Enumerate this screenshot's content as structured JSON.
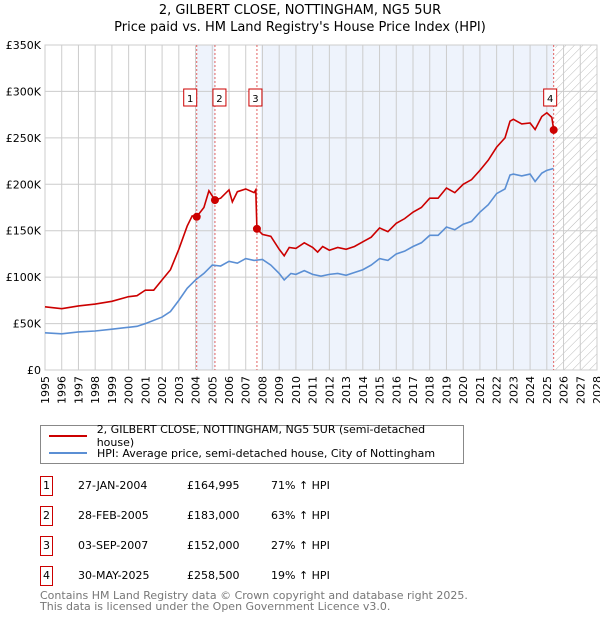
{
  "title": "2, GILBERT CLOSE, NOTTINGHAM, NG5 5UR",
  "subtitle": "Price paid vs. HM Land Registry's House Price Index (HPI)",
  "chart_data": {
    "type": "line",
    "xlim": [
      1995,
      2028
    ],
    "ylim": [
      0,
      350000
    ],
    "yticks": [
      {
        "v": 0,
        "label": "£0"
      },
      {
        "v": 50000,
        "label": "£50K"
      },
      {
        "v": 100000,
        "label": "£100K"
      },
      {
        "v": 150000,
        "label": "£150K"
      },
      {
        "v": 200000,
        "label": "£200K"
      },
      {
        "v": 250000,
        "label": "£250K"
      },
      {
        "v": 300000,
        "label": "£300K"
      },
      {
        "v": 350000,
        "label": "£350K"
      }
    ],
    "xticks": [
      "1995",
      "1996",
      "1997",
      "1998",
      "1999",
      "2000",
      "2001",
      "2002",
      "2003",
      "2004",
      "2005",
      "2006",
      "2007",
      "2008",
      "2009",
      "2010",
      "2011",
      "2012",
      "2013",
      "2014",
      "2015",
      "2016",
      "2017",
      "2018",
      "2019",
      "2020",
      "2021",
      "2022",
      "2023",
      "2024",
      "2025",
      "2026",
      "2027",
      "2028"
    ],
    "series": [
      {
        "name": "2, GILBERT CLOSE, NOTTINGHAM, NG5 5UR (semi-detached house)",
        "color": "#cc0000",
        "x": [
          1995,
          1996,
          1997,
          1998,
          1999,
          2000,
          2000.5,
          2001,
          2001.5,
          2002,
          2002.5,
          2003,
          2003.5,
          2003.8,
          2004.07,
          2004.5,
          2004.8,
          2005.16,
          2005.5,
          2006,
          2006.2,
          2006.5,
          2007,
          2007.5,
          2007.6,
          2007.67,
          2008,
          2008.5,
          2009,
          2009.3,
          2009.6,
          2010,
          2010.5,
          2011,
          2011.3,
          2011.6,
          2012,
          2012.5,
          2013,
          2013.5,
          2014,
          2014.5,
          2015,
          2015.5,
          2016,
          2016.5,
          2017,
          2017.5,
          2018,
          2018.5,
          2019,
          2019.5,
          2020,
          2020.5,
          2021,
          2021.5,
          2022,
          2022.5,
          2022.8,
          2023,
          2023.5,
          2024,
          2024.3,
          2024.7,
          2025,
          2025.3,
          2025.41
        ],
        "y": [
          68,
          66,
          69,
          71,
          74,
          79,
          80,
          86,
          86,
          97,
          108,
          130,
          155,
          166,
          165,
          175,
          193,
          183,
          185,
          194,
          181,
          192,
          195,
          191,
          194,
          152,
          146,
          144,
          130,
          123,
          132,
          131,
          137,
          132,
          127,
          133,
          129,
          132,
          130,
          133,
          138,
          143,
          153,
          149,
          158,
          163,
          170,
          175,
          185,
          185,
          196,
          191,
          200,
          205,
          215,
          226,
          240,
          250,
          268,
          270,
          265,
          266,
          259,
          273,
          277,
          272,
          258.5
        ],
        "y_unit": "thousands GBP"
      },
      {
        "name": "HPI: Average price, semi-detached house, City of Nottingham",
        "color": "#5b8fd4",
        "x": [
          1995,
          1996,
          1997,
          1998,
          1999,
          2000,
          2000.5,
          2001,
          2002,
          2002.5,
          2003,
          2003.5,
          2004,
          2004.5,
          2005,
          2005.5,
          2006,
          2006.5,
          2007,
          2007.5,
          2008,
          2008.5,
          2009,
          2009.3,
          2009.7,
          2010,
          2010.5,
          2011,
          2011.5,
          2012,
          2012.5,
          2013,
          2013.5,
          2014,
          2014.5,
          2015,
          2015.5,
          2016,
          2016.5,
          2017,
          2017.5,
          2018,
          2018.5,
          2019,
          2019.5,
          2020,
          2020.5,
          2021,
          2021.5,
          2022,
          2022.5,
          2022.8,
          2023,
          2023.5,
          2024,
          2024.3,
          2024.7,
          2025,
          2025.4
        ],
        "y": [
          40,
          39,
          41,
          42,
          44,
          46,
          47,
          50,
          57,
          63,
          75,
          88,
          97,
          104,
          113,
          112,
          117,
          115,
          120,
          118,
          119,
          113,
          104,
          97,
          104,
          103,
          107,
          103,
          101,
          103,
          104,
          102,
          105,
          108,
          113,
          120,
          118,
          125,
          128,
          133,
          137,
          145,
          145,
          154,
          151,
          157,
          160,
          170,
          178,
          190,
          195,
          210,
          211,
          209,
          211,
          203,
          212,
          215,
          217
        ],
        "y_unit": "thousands GBP"
      }
    ],
    "sales": [
      {
        "label": "1",
        "x": 2004.07,
        "y": 164.995
      },
      {
        "label": "2",
        "x": 2005.16,
        "y": 183
      },
      {
        "label": "3",
        "x": 2007.67,
        "y": 152
      },
      {
        "label": "4",
        "x": 2025.41,
        "y": 258.5
      }
    ],
    "shaded_ranges": [
      [
        2004.07,
        2005.16
      ],
      [
        2007.9,
        2025.41
      ]
    ],
    "future_from": 2025.5
  },
  "legend": [
    {
      "label": "2, GILBERT CLOSE, NOTTINGHAM, NG5 5UR (semi-detached house)",
      "color": "#cc0000"
    },
    {
      "label": "HPI: Average price, semi-detached house, City of Nottingham",
      "color": "#5b8fd4"
    }
  ],
  "transactions": [
    {
      "num": "1",
      "date": "27-JAN-2004",
      "price": "£164,995",
      "hpi": "71% ↑ HPI"
    },
    {
      "num": "2",
      "date": "28-FEB-2005",
      "price": "£183,000",
      "hpi": "63% ↑ HPI"
    },
    {
      "num": "3",
      "date": "03-SEP-2007",
      "price": "£152,000",
      "hpi": "27% ↑ HPI"
    },
    {
      "num": "4",
      "date": "30-MAY-2025",
      "price": "£258,500",
      "hpi": "19% ↑ HPI"
    }
  ],
  "footer": {
    "line1": "Contains HM Land Registry data © Crown copyright and database right 2025.",
    "line2": "This data is licensed under the Open Government Licence v3.0."
  }
}
